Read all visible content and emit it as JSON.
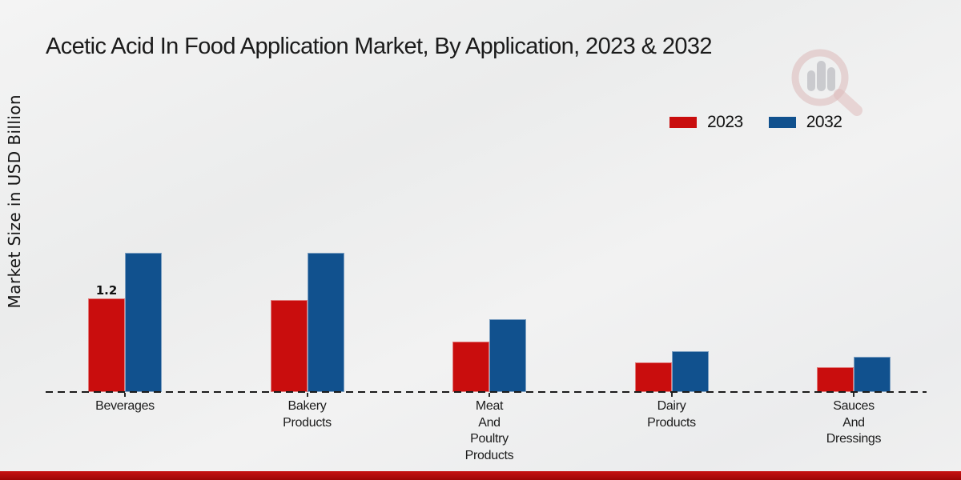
{
  "chart_data": {
    "type": "bar",
    "title": "Acetic Acid In Food Application Market, By Application, 2023 & 2032",
    "ylabel": "Market Size in USD Billion",
    "xlabel": "",
    "categories": [
      "Beverages",
      "Bakery\nProducts",
      "Meat\nAnd\nPoultry\nProducts",
      "Dairy\nProducts",
      "Sauces\nAnd\nDressings"
    ],
    "series": [
      {
        "name": "2023",
        "color": "#c90d0d",
        "values": [
          1.2,
          1.18,
          0.65,
          0.38,
          0.32
        ]
      },
      {
        "name": "2032",
        "color": "#11518e",
        "values": [
          1.78,
          1.78,
          0.93,
          0.52,
          0.45
        ]
      }
    ],
    "bar_label": {
      "series_index": 0,
      "category_index": 0,
      "text": "1.2"
    },
    "unit": "USD Billion",
    "legend_position": "top-right",
    "grid": false,
    "baseline_style": "dashed"
  },
  "colors": {
    "series_2023": "#c90d0d",
    "series_2032": "#11518e",
    "bottom_strip": "#b00909",
    "text": "#1b1b1b"
  },
  "watermark": {
    "name": "magnifier-bar-chart-logo"
  }
}
